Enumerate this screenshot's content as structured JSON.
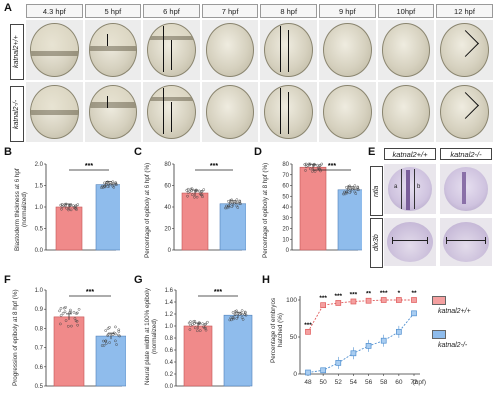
{
  "panels": {
    "A": "A",
    "B": "B",
    "C": "C",
    "D": "D",
    "E": "E",
    "F": "F",
    "G": "G",
    "H": "H"
  },
  "panel_a": {
    "stages": [
      "4.3 hpf",
      "5 hpf",
      "6 hpf",
      "7 hpf",
      "8 hpf",
      "9 hpf",
      "10hpf",
      "12 hpf"
    ],
    "rows": [
      "katnal2+/+",
      "katnal2-/-"
    ]
  },
  "panel_e": {
    "cols": [
      "katnal2+/+",
      "katnal2-/-"
    ],
    "rows": [
      "ntla",
      "dlx3b"
    ],
    "markers": [
      "a",
      "b"
    ]
  },
  "significance": "***",
  "chart_data": [
    {
      "panel": "B",
      "type": "bar",
      "ylabel": "Blastoderm thickness at 6 hpf (normalized)",
      "ylim": [
        0,
        2.0
      ],
      "yticks": [
        "0.0",
        "0.5",
        "1.0",
        "1.5",
        "2.0"
      ],
      "values": [
        1.0,
        1.52
      ],
      "colors": [
        "#f08a8a",
        "#8fbcec"
      ]
    },
    {
      "panel": "C",
      "type": "bar",
      "ylabel": "Percentage of epiboly at 6 hpf (%)",
      "ylim": [
        0,
        80
      ],
      "yticks": [
        "0",
        "20",
        "40",
        "60",
        "80"
      ],
      "values": [
        53,
        43
      ],
      "colors": [
        "#f08a8a",
        "#8fbcec"
      ]
    },
    {
      "panel": "D",
      "type": "bar",
      "ylabel": "Percentage of epiboly at 8 hpf (%)",
      "ylim": [
        0,
        80
      ],
      "yticks": [
        "0",
        "10",
        "20",
        "30",
        "40",
        "50",
        "60",
        "70",
        "80"
      ],
      "values": [
        77,
        56
      ],
      "colors": [
        "#f08a8a",
        "#8fbcec"
      ]
    },
    {
      "panel": "F",
      "type": "bar",
      "ylabel": "Progression of epiboly at 8 hpf (%)",
      "ylim": [
        0.5,
        1.0
      ],
      "yticks": [
        "0.5",
        "0.6",
        "0.7",
        "0.8",
        "0.9",
        "1.0"
      ],
      "values": [
        0.86,
        0.76
      ],
      "colors": [
        "#f08a8a",
        "#8fbcec"
      ]
    },
    {
      "panel": "G",
      "type": "bar",
      "ylabel": "Neural plate width at 100% epiboly (normalized)",
      "ylim": [
        0,
        1.6
      ],
      "yticks": [
        "0.0",
        "0.2",
        "0.4",
        "0.6",
        "0.8",
        "1.0",
        "1.2",
        "1.4",
        "1.6"
      ],
      "values": [
        1.0,
        1.18
      ],
      "colors": [
        "#f08a8a",
        "#8fbcec"
      ]
    },
    {
      "panel": "H",
      "type": "line",
      "ylabel": "Percentage of embryos hatched (%)",
      "xlabel": "(hpf)",
      "x": [
        48,
        50,
        52,
        54,
        56,
        58,
        60,
        72
      ],
      "xticks": [
        "48",
        "50",
        "52",
        "54",
        "56",
        "58",
        "60",
        "72"
      ],
      "ylim": [
        0,
        100
      ],
      "yticks": [
        "0",
        "50",
        "100"
      ],
      "series": [
        {
          "name": "katnal2+/+",
          "values": [
            57,
            93,
            96,
            98,
            99,
            100,
            100,
            100
          ],
          "color": "#e05a5a"
        },
        {
          "name": "katnal2-/-",
          "values": [
            2,
            5,
            15,
            28,
            38,
            45,
            57,
            82
          ],
          "color": "#4f8fd0"
        }
      ],
      "annotations": [
        "***",
        "***",
        "***",
        "***",
        "**",
        "***",
        "*",
        "**"
      ]
    }
  ]
}
